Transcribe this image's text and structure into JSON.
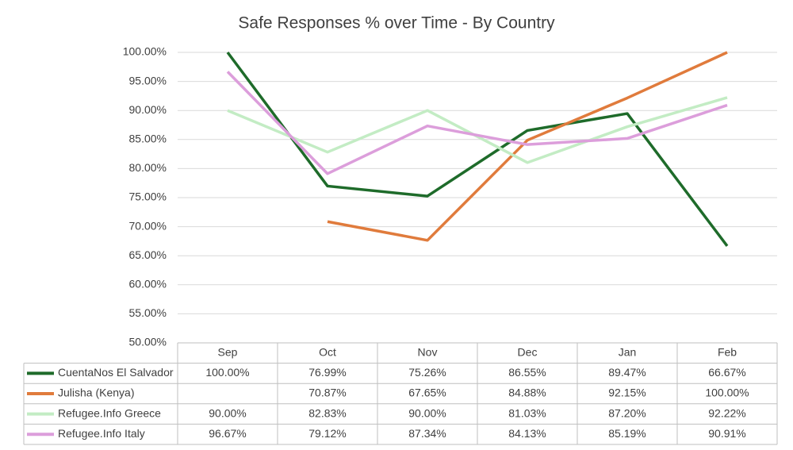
{
  "chart_data": {
    "type": "line",
    "title": "Safe Responses % over Time - By Country",
    "categories": [
      "Sep",
      "Oct",
      "Nov",
      "Dec",
      "Jan",
      "Feb"
    ],
    "ylim": [
      50,
      100
    ],
    "yticks": [
      {
        "value": 50,
        "label": "50.00%"
      },
      {
        "value": 55,
        "label": "55.00%"
      },
      {
        "value": 60,
        "label": "60.00%"
      },
      {
        "value": 65,
        "label": "65.00%"
      },
      {
        "value": 70,
        "label": "70.00%"
      },
      {
        "value": 75,
        "label": "75.00%"
      },
      {
        "value": 80,
        "label": "80.00%"
      },
      {
        "value": 85,
        "label": "85.00%"
      },
      {
        "value": 90,
        "label": "90.00%"
      },
      {
        "value": 95,
        "label": "95.00%"
      },
      {
        "value": 100,
        "label": "100.00%"
      }
    ],
    "grid": true,
    "series": [
      {
        "name": "CuentaNos El Salvador",
        "color": "#1e6b2a",
        "values": [
          100,
          76.99,
          75.26,
          86.55,
          89.47,
          66.67
        ],
        "value_labels": [
          "100.00%",
          "76.99%",
          "75.26%",
          "86.55%",
          "89.47%",
          "66.67%"
        ]
      },
      {
        "name": "Julisha (Kenya)",
        "color": "#e07b3c",
        "values": [
          null,
          70.87,
          67.65,
          84.88,
          92.15,
          100
        ],
        "value_labels": [
          null,
          "70.87%",
          "67.65%",
          "84.88%",
          "92.15%",
          "100.00%"
        ]
      },
      {
        "name": "Refugee.Info Greece",
        "color": "#c3ecc4",
        "values": [
          90,
          82.83,
          90,
          81.03,
          87.2,
          92.22
        ],
        "value_labels": [
          "90.00%",
          "82.83%",
          "90.00%",
          "81.03%",
          "87.20%",
          "92.22%"
        ]
      },
      {
        "name": "Refugee.Info Italy",
        "color": "#dc9edb",
        "values": [
          96.67,
          79.12,
          87.34,
          84.13,
          85.19,
          90.91
        ],
        "value_labels": [
          "96.67%",
          "79.12%",
          "87.34%",
          "84.13%",
          "85.19%",
          "90.91%"
        ]
      }
    ]
  }
}
